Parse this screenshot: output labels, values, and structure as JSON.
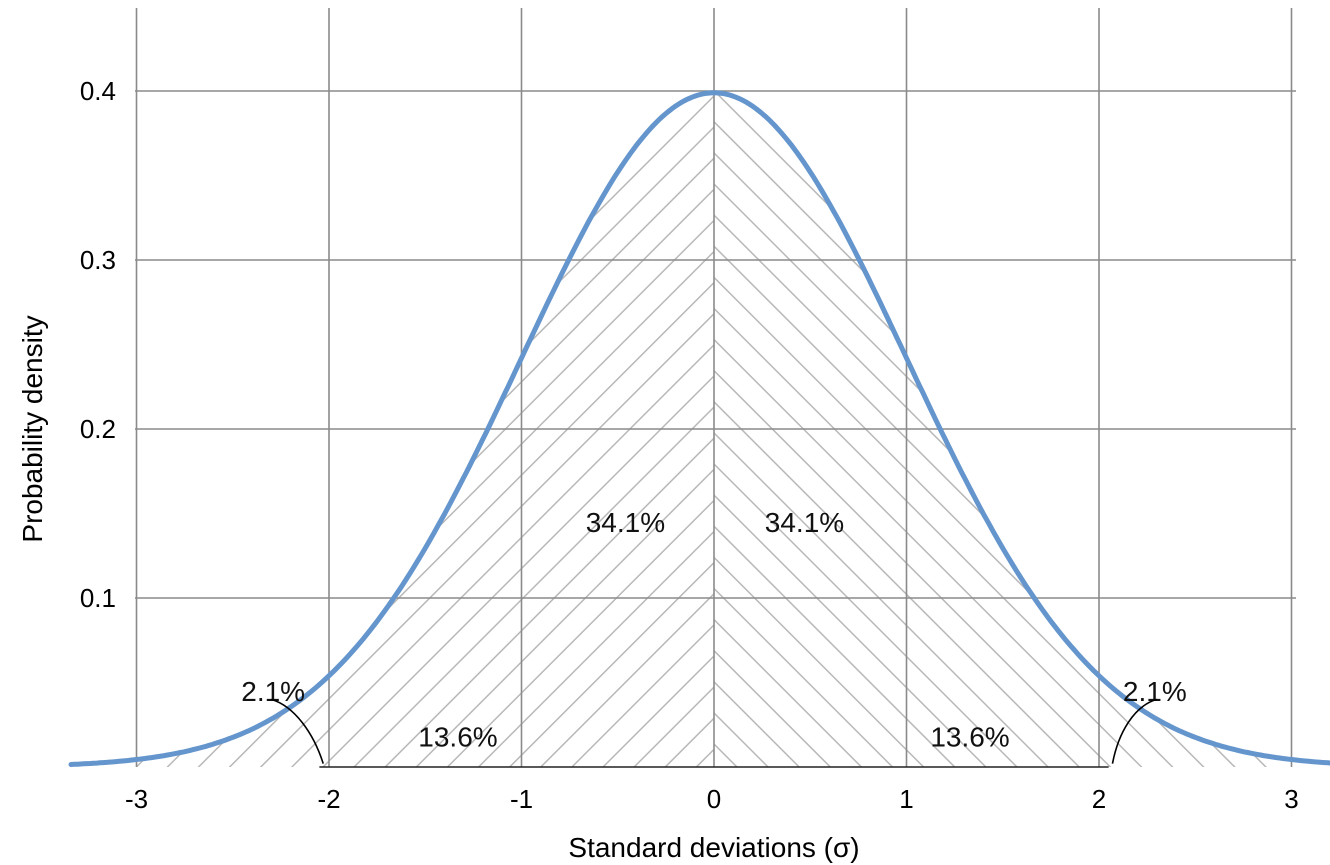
{
  "chart_data": {
    "type": "area",
    "xlabel": "Standard deviations (σ)",
    "ylabel": "Probability density",
    "xlim": [
      -3.2,
      3.2
    ],
    "ylim": [
      0,
      0.4
    ],
    "grid": true,
    "x_ticks": [
      -3,
      -2,
      -1,
      0,
      1,
      2,
      3
    ],
    "x_tick_labels": [
      "-3",
      "-2",
      "-1",
      "0",
      "1",
      "2",
      "3"
    ],
    "y_ticks": [
      0.1,
      0.2,
      0.3,
      0.4
    ],
    "y_tick_labels": [
      "0.1",
      "0.2",
      "0.3",
      "0.4"
    ],
    "curve": {
      "function": "standard normal probability density",
      "mean": 0,
      "sd": 1,
      "color": "#6495cd"
    },
    "regions": [
      {
        "from": -2,
        "to": -1,
        "label": "13.6%"
      },
      {
        "from": -1,
        "to": 0,
        "label": "34.1%"
      },
      {
        "from": 0,
        "to": 1,
        "label": "34.1%"
      },
      {
        "from": 1,
        "to": 2,
        "label": "13.6%"
      },
      {
        "from": -3,
        "to": -2,
        "label": "2.1%"
      },
      {
        "from": 2,
        "to": 3,
        "label": "2.1%"
      }
    ],
    "colors": {
      "grid": "#8a8a8a",
      "hatch": "#b8b8b8",
      "baseline": "#222222"
    }
  }
}
